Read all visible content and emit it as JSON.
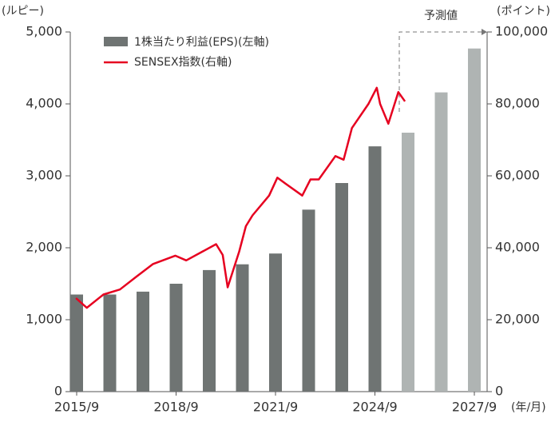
{
  "chart_data": {
    "type": "bar_line",
    "ylabel": "(ルピー)",
    "y2label": "(ポイント)",
    "xlabel": "(年/月)",
    "annotation": "予測値",
    "categories": [
      "2015/9",
      null,
      null,
      "2018/9",
      null,
      null,
      "2021/9",
      null,
      null,
      "2024/9",
      null,
      null,
      "2027/9"
    ],
    "series": [
      {
        "name": "1株当たり利益(EPS)(左軸)",
        "type": "bar",
        "color": "#6f7473",
        "colors": [
          "#6f7473",
          "#6f7473",
          "#6f7473",
          "#6f7473",
          "#6f7473",
          "#6f7473",
          "#6f7473",
          "#6f7473",
          "#6f7473",
          "#6f7473",
          "#afb4b3",
          "#afb4b3",
          "#afb4b3"
        ],
        "values": [
          1350,
          1350,
          1390,
          1500,
          1690,
          1770,
          1920,
          2530,
          2900,
          3410,
          3600,
          4160,
          4770
        ]
      },
      {
        "name": "SENSEX指数(右軸)",
        "type": "line",
        "axis": "y2",
        "color": "#e60020",
        "x": [
          2015.67,
          2016.0,
          2016.5,
          2017.0,
          2017.5,
          2018.0,
          2018.67,
          2019.0,
          2019.5,
          2019.9,
          2020.1,
          2020.25,
          2020.6,
          2020.8,
          2021.0,
          2021.5,
          2021.75,
          2022.0,
          2022.5,
          2022.75,
          2023.0,
          2023.5,
          2023.75,
          2024.0,
          2024.5,
          2024.75,
          2024.85,
          2025.1,
          2025.4,
          2025.6
        ],
        "values": [
          26000,
          23300,
          27000,
          28400,
          32000,
          35500,
          37800,
          36500,
          39000,
          41000,
          38000,
          29000,
          39000,
          46000,
          49000,
          54500,
          59500,
          57800,
          54500,
          59000,
          59000,
          65500,
          64500,
          73300,
          80000,
          84500,
          80000,
          74500,
          83300,
          80700
        ]
      }
    ],
    "xlim": [
      2015.5,
      2028.08
    ],
    "ylim": [
      0,
      5000
    ],
    "yticks": [
      0,
      {
        "value": 1000,
        "label": "1,000"
      },
      {
        "value": 2000,
        "label": "2,000"
      },
      {
        "value": 3000,
        "label": "3,000"
      },
      {
        "value": 4000,
        "label": "4,000"
      },
      {
        "value": 5000,
        "label": "5,000"
      }
    ],
    "y2lim": [
      0,
      100000
    ],
    "y2ticks": [
      0,
      {
        "value": 20000,
        "label": "20,000"
      },
      {
        "value": 40000,
        "label": "40,000"
      },
      {
        "value": 60000,
        "label": "60,000"
      },
      {
        "value": 80000,
        "label": "80,000"
      },
      {
        "value": 100000,
        "label": "100,000"
      }
    ]
  }
}
